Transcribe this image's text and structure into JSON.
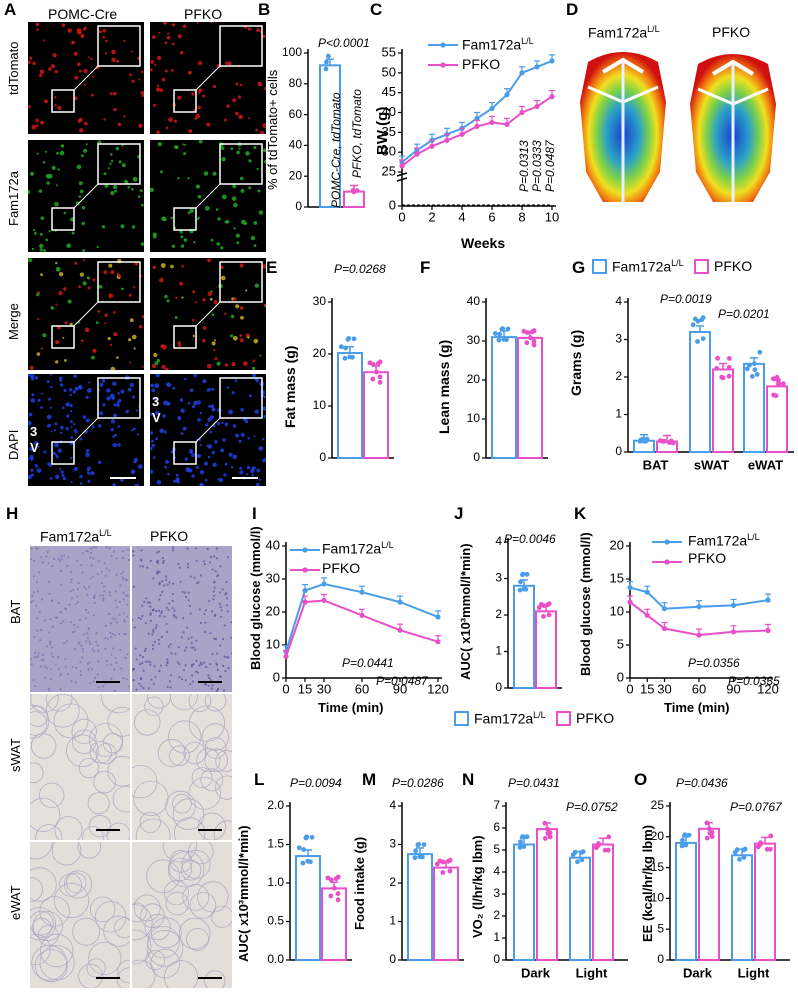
{
  "panels": {
    "A": {
      "letter": "A",
      "col_labels": [
        "POMC-Cre",
        "PFKO"
      ],
      "row_labels": [
        "tdTomato",
        "Fam172a",
        "Merge",
        "DAPI"
      ],
      "anatomy_marks": [
        "3",
        "V"
      ]
    },
    "B": {
      "letter": "B",
      "ylabel": "% of tdTomato+ cells",
      "pvalue": "P<0.0001",
      "bar_labels": [
        "POMC-Cre, tdTomato",
        "PFKO, tdTomato"
      ],
      "yticks": [
        "0",
        "20",
        "40",
        "60",
        "80",
        "100"
      ]
    },
    "C": {
      "letter": "C",
      "ylabel": "BW (g)",
      "xlabel": "Weeks",
      "legend": [
        "Fam172a",
        "PFKO"
      ],
      "legend_sup": "L/L",
      "pvalues": [
        "P=0.0313",
        "P=0.0333",
        "P=0.0487"
      ],
      "yticks": [
        "0",
        "25",
        "30",
        "35",
        "40",
        "45",
        "50",
        "55"
      ],
      "xticks": [
        "0",
        "2",
        "4",
        "6",
        "8",
        "10"
      ]
    },
    "D": {
      "letter": "D",
      "col_labels": [
        "Fam172a",
        "PFKO"
      ],
      "col_sup": "L/L"
    },
    "E": {
      "letter": "E",
      "ylabel": "Fat mass (g)",
      "pvalue": "P=0.0268",
      "yticks": [
        "0",
        "10",
        "20",
        "30"
      ]
    },
    "F": {
      "letter": "F",
      "ylabel": "Lean mass (g)",
      "yticks": [
        "0",
        "10",
        "20",
        "30",
        "40"
      ]
    },
    "G": {
      "letter": "G",
      "ylabel": "Grams (g)",
      "legend": [
        "Fam172a",
        "PFKO"
      ],
      "legend_sup": "L/L",
      "pvalues": [
        "P=0.0019",
        "P=0.0201"
      ],
      "categories": [
        "BAT",
        "sWAT",
        "eWAT"
      ],
      "yticks": [
        "0",
        "1",
        "2",
        "3",
        "4"
      ]
    },
    "H": {
      "letter": "H",
      "col_labels": [
        "Fam172a",
        "PFKO"
      ],
      "col_sup": "L/L",
      "row_labels": [
        "BAT",
        "sWAT",
        "eWAT"
      ]
    },
    "I": {
      "letter": "I",
      "ylabel": "Blood glucose (mmol/l)",
      "xlabel": "Time (min)",
      "legend": [
        "Fam172a",
        "PFKO"
      ],
      "legend_sup": "L/L",
      "pvalues": [
        "P=0.0441",
        "P=0.0487"
      ],
      "yticks": [
        "0",
        "10",
        "20",
        "30",
        "40"
      ],
      "xticks": [
        "0",
        "15",
        "30",
        "60",
        "90",
        "120"
      ]
    },
    "J": {
      "letter": "J",
      "ylabel": "AUC( x10³mmol/l*min)",
      "pvalue": "P=0.0046",
      "yticks": [
        "0",
        "1",
        "2",
        "3",
        "4"
      ]
    },
    "K": {
      "letter": "K",
      "ylabel": "Blood glucose (mmol/l)",
      "xlabel": "Time (min)",
      "legend": [
        "Fam172a",
        "PFKO"
      ],
      "legend_sup": "L/L",
      "pvalues": [
        "P=0.0356",
        "P=0.0335"
      ],
      "yticks": [
        "0",
        "5",
        "10",
        "15",
        "20"
      ],
      "xticks": [
        "0",
        "15",
        "30",
        "60",
        "90",
        "120"
      ]
    },
    "mid_legend": {
      "items": [
        "Fam172a",
        "PFKO"
      ],
      "sup": "L/L"
    },
    "L": {
      "letter": "L",
      "ylabel": "AUC( x10³mmol/l*min)",
      "pvalue": "P=0.0094",
      "yticks": [
        "0.0",
        "0.5",
        "1.0",
        "1.5",
        "2.0"
      ]
    },
    "M": {
      "letter": "M",
      "ylabel": "Food intake (g)",
      "pvalue": "P=0.0286",
      "yticks": [
        "0",
        "1",
        "2",
        "3",
        "4"
      ]
    },
    "N": {
      "letter": "N",
      "ylabel": "VO₂ (l/hr/kg lbm)",
      "pvalues": [
        "P=0.0431",
        "P=0.0752"
      ],
      "categories": [
        "Dark",
        "Light"
      ],
      "yticks": [
        "0",
        "1",
        "2",
        "3",
        "4",
        "5",
        "6",
        "7"
      ]
    },
    "O": {
      "letter": "O",
      "ylabel": "EE (kcal/hr/kg lbm)",
      "pvalues": [
        "P=0.0436",
        "P=0.0767"
      ],
      "categories": [
        "Dark",
        "Light"
      ],
      "yticks": [
        "0",
        "5",
        "10",
        "15",
        "20",
        "25"
      ]
    }
  },
  "colors": {
    "control": "#4a9de8",
    "pfko": "#e94fc6",
    "tdtomato": "#d01818",
    "fam172a": "#22a822",
    "dapi": "#1f3ee0"
  },
  "chart_data": [
    {
      "panel": "B",
      "type": "bar",
      "categories": [
        "POMC-Cre, tdTomato",
        "PFKO, tdTomato"
      ],
      "values": [
        92,
        10
      ],
      "ylim": [
        0,
        100
      ]
    },
    {
      "panel": "C",
      "type": "line",
      "x": [
        0,
        1,
        2,
        3,
        4,
        5,
        6,
        7,
        8,
        9,
        10
      ],
      "series": [
        {
          "name": "Fam172a L/L",
          "values": [
            27.5,
            30.5,
            33,
            34.5,
            36,
            38.5,
            41,
            44.5,
            50,
            51.5,
            53
          ]
        },
        {
          "name": "PFKO",
          "values": [
            26.5,
            29.5,
            31.5,
            33,
            34.5,
            36.5,
            37.5,
            37,
            40,
            41.5,
            44
          ]
        }
      ],
      "ylim": [
        25,
        55
      ]
    },
    {
      "panel": "E",
      "type": "bar",
      "categories": [
        "Fam172a L/L",
        "PFKO"
      ],
      "values": [
        20.2,
        16.5
      ],
      "ylim": [
        0,
        30
      ]
    },
    {
      "panel": "F",
      "type": "bar",
      "categories": [
        "Fam172a L/L",
        "PFKO"
      ],
      "values": [
        31,
        30.8
      ],
      "ylim": [
        0,
        40
      ]
    },
    {
      "panel": "G",
      "type": "bar",
      "categories": [
        "BAT",
        "sWAT",
        "eWAT"
      ],
      "series": [
        {
          "name": "Fam172a L/L",
          "values": [
            0.3,
            3.2,
            2.35
          ]
        },
        {
          "name": "PFKO",
          "values": [
            0.28,
            2.2,
            1.75
          ]
        }
      ],
      "ylim": [
        0,
        4
      ]
    },
    {
      "panel": "I",
      "type": "line",
      "x": [
        0,
        15,
        30,
        60,
        90,
        120
      ],
      "series": [
        {
          "name": "Fam172a L/L",
          "values": [
            8,
            26.5,
            28.5,
            26,
            23,
            18.5
          ]
        },
        {
          "name": "PFKO",
          "values": [
            6.5,
            23,
            23.5,
            19,
            14.5,
            11
          ]
        }
      ],
      "ylim": [
        0,
        40
      ]
    },
    {
      "panel": "J",
      "type": "bar",
      "categories": [
        "Fam172a L/L",
        "PFKO"
      ],
      "values": [
        2.8,
        2.1
      ],
      "ylim": [
        0,
        4
      ]
    },
    {
      "panel": "K",
      "type": "line",
      "x": [
        0,
        15,
        30,
        60,
        90,
        120
      ],
      "series": [
        {
          "name": "Fam172a L/L",
          "values": [
            13.7,
            13,
            10.5,
            10.8,
            11,
            11.8
          ]
        },
        {
          "name": "PFKO",
          "values": [
            11.5,
            9.5,
            7.5,
            6.5,
            7,
            7.2
          ]
        }
      ],
      "ylim": [
        0,
        20
      ]
    },
    {
      "panel": "L",
      "type": "bar",
      "categories": [
        "Fam172a L/L",
        "PFKO"
      ],
      "values": [
        1.35,
        0.93
      ],
      "ylim": [
        0,
        2
      ]
    },
    {
      "panel": "M",
      "type": "bar",
      "categories": [
        "Fam172a L/L",
        "PFKO"
      ],
      "values": [
        2.75,
        2.4
      ],
      "ylim": [
        0,
        4
      ]
    },
    {
      "panel": "N",
      "type": "bar",
      "categories": [
        "Dark",
        "Light"
      ],
      "series": [
        {
          "name": "Fam172a L/L",
          "values": [
            5.25,
            4.65
          ]
        },
        {
          "name": "PFKO",
          "values": [
            5.95,
            5.25
          ]
        }
      ],
      "ylim": [
        0,
        7
      ]
    },
    {
      "panel": "O",
      "type": "bar",
      "categories": [
        "Dark",
        "Light"
      ],
      "series": [
        {
          "name": "Fam172a L/L",
          "values": [
            19,
            17
          ]
        },
        {
          "name": "PFKO",
          "values": [
            21.3,
            18.9
          ]
        }
      ],
      "ylim": [
        0,
        25
      ]
    }
  ]
}
